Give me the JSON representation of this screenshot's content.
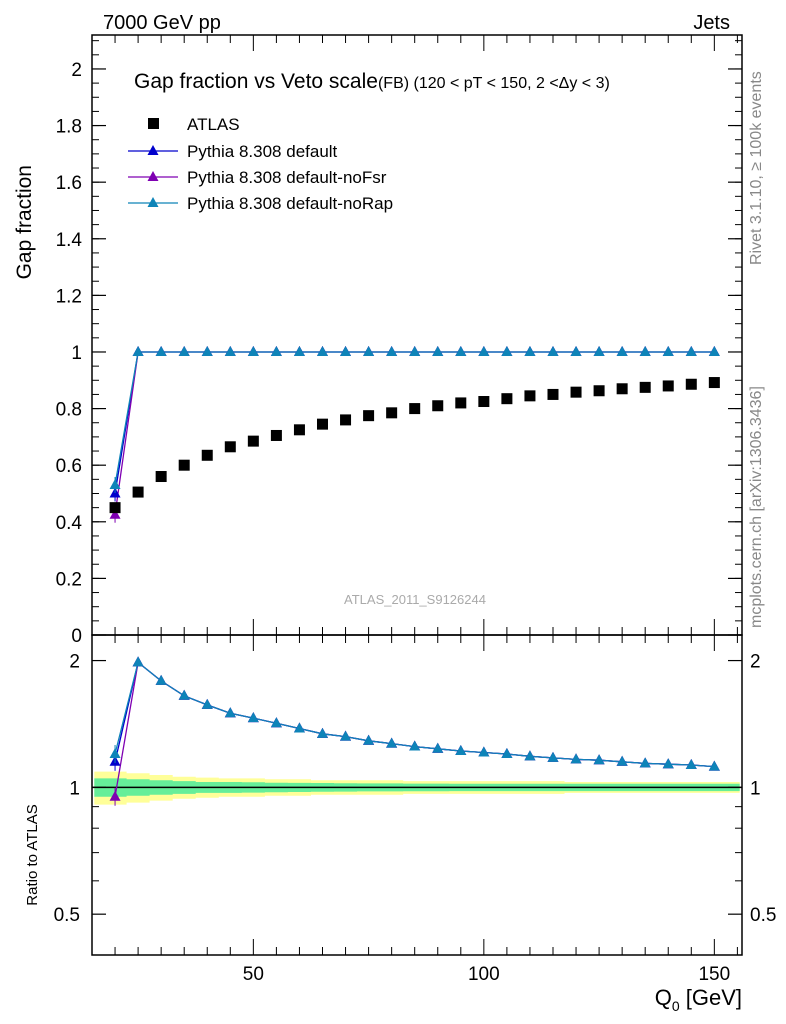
{
  "header": {
    "left": "7000 GeV pp",
    "right": "Jets"
  },
  "side_labels": {
    "rivet": "Rivet 3.1.10, ≥ 100k events",
    "mcplots": "mcplots.cern.ch [arXiv:1306.3436]"
  },
  "colors": {
    "atlas": "#000000",
    "default": "#0000cc",
    "noFsr": "#7f00b2",
    "noRap": "#0e84b8",
    "band_yellow": "#ffff99",
    "band_green": "#66ee99"
  },
  "chart_data": [
    {
      "type": "scatter",
      "title": "Gap fraction vs Veto scale",
      "subtitle": "(FB) (120 < pT < 150, 2 <Δy < 3)",
      "ylabel": "Gap fraction",
      "xlim": [
        15,
        156
      ],
      "ylim": [
        0,
        2.12
      ],
      "yticks": [
        0,
        0.2,
        0.4,
        0.6,
        0.8,
        1,
        1.2,
        1.4,
        1.6,
        1.8,
        2
      ],
      "watermark": "ATLAS_2011_S9126244",
      "legend_position": "top-left",
      "x": [
        20,
        25,
        30,
        35,
        40,
        45,
        50,
        55,
        60,
        65,
        70,
        75,
        80,
        85,
        90,
        95,
        100,
        105,
        110,
        115,
        120,
        125,
        130,
        135,
        140,
        145,
        150
      ],
      "series": [
        {
          "name": "ATLAS",
          "marker": "square",
          "values": [
            0.45,
            0.505,
            0.56,
            0.6,
            0.635,
            0.665,
            0.685,
            0.705,
            0.725,
            0.745,
            0.76,
            0.775,
            0.785,
            0.8,
            0.81,
            0.82,
            0.825,
            0.835,
            0.845,
            0.85,
            0.858,
            0.863,
            0.87,
            0.875,
            0.88,
            0.886,
            0.892
          ]
        },
        {
          "name": "Pythia 8.308 default",
          "marker": "triangle",
          "color_key": "default",
          "values": [
            0.5,
            1,
            1,
            1,
            1,
            1,
            1,
            1,
            1,
            1,
            1,
            1,
            1,
            1,
            1,
            1,
            1,
            1,
            1,
            1,
            1,
            1,
            1,
            1,
            1,
            1,
            1
          ]
        },
        {
          "name": "Pythia 8.308 default-noFsr",
          "marker": "triangle",
          "color_key": "noFsr",
          "values": [
            0.425,
            1,
            1,
            1,
            1,
            1,
            1,
            1,
            1,
            1,
            1,
            1,
            1,
            1,
            1,
            1,
            1,
            1,
            1,
            1,
            1,
            1,
            1,
            1,
            1,
            1,
            1
          ]
        },
        {
          "name": "Pythia 8.308 default-noRap",
          "marker": "triangle",
          "color_key": "noRap",
          "values": [
            0.53,
            1,
            1,
            1,
            1,
            1,
            1,
            1,
            1,
            1,
            1,
            1,
            1,
            1,
            1,
            1,
            1,
            1,
            1,
            1,
            1,
            1,
            1,
            1,
            1,
            1,
            1
          ]
        }
      ]
    },
    {
      "type": "line",
      "ylabel": "Ratio to ATLAS",
      "xlabel": "Q",
      "xlabel_sub": "0",
      "xlabel_unit": " [GeV]",
      "xlim": [
        15,
        156
      ],
      "ylim": [
        0.4,
        2.3
      ],
      "xticks": [
        50,
        100,
        150
      ],
      "yticks": [
        0.5,
        1,
        2
      ],
      "x": [
        20,
        25,
        30,
        35,
        40,
        45,
        50,
        55,
        60,
        65,
        70,
        75,
        80,
        85,
        90,
        95,
        100,
        105,
        110,
        115,
        120,
        125,
        130,
        135,
        140,
        145,
        150
      ],
      "uncertainty_band": {
        "outer": [
          0.09,
          0.08,
          0.07,
          0.06,
          0.055,
          0.05,
          0.05,
          0.045,
          0.045,
          0.04,
          0.04,
          0.04,
          0.04,
          0.035,
          0.035,
          0.035,
          0.035,
          0.035,
          0.035,
          0.035,
          0.03,
          0.03,
          0.03,
          0.03,
          0.03,
          0.03,
          0.03
        ],
        "inner": [
          0.05,
          0.045,
          0.04,
          0.035,
          0.03,
          0.03,
          0.028,
          0.026,
          0.025,
          0.024,
          0.023,
          0.022,
          0.022,
          0.021,
          0.021,
          0.02,
          0.02,
          0.02,
          0.02,
          0.02,
          0.02,
          0.02,
          0.02,
          0.02,
          0.02,
          0.02,
          0.02
        ]
      },
      "series": [
        {
          "name": "Pythia 8.308 default",
          "color_key": "default",
          "values": [
            1.15,
            1.98,
            1.79,
            1.65,
            1.57,
            1.5,
            1.46,
            1.42,
            1.38,
            1.34,
            1.32,
            1.29,
            1.27,
            1.25,
            1.235,
            1.22,
            1.21,
            1.2,
            1.185,
            1.175,
            1.165,
            1.16,
            1.15,
            1.14,
            1.135,
            1.13,
            1.12
          ]
        },
        {
          "name": "Pythia 8.308 default-noFsr",
          "color_key": "noFsr",
          "values": [
            0.95,
            1.98,
            1.79,
            1.65,
            1.57,
            1.5,
            1.46,
            1.42,
            1.38,
            1.34,
            1.32,
            1.29,
            1.27,
            1.25,
            1.235,
            1.22,
            1.21,
            1.2,
            1.185,
            1.175,
            1.165,
            1.16,
            1.15,
            1.14,
            1.135,
            1.13,
            1.12
          ]
        },
        {
          "name": "Pythia 8.308 default-noRap",
          "color_key": "noRap",
          "values": [
            1.2,
            1.98,
            1.79,
            1.65,
            1.57,
            1.5,
            1.46,
            1.42,
            1.38,
            1.34,
            1.32,
            1.29,
            1.27,
            1.25,
            1.235,
            1.22,
            1.21,
            1.2,
            1.185,
            1.175,
            1.165,
            1.16,
            1.15,
            1.14,
            1.135,
            1.13,
            1.12
          ]
        }
      ]
    }
  ]
}
